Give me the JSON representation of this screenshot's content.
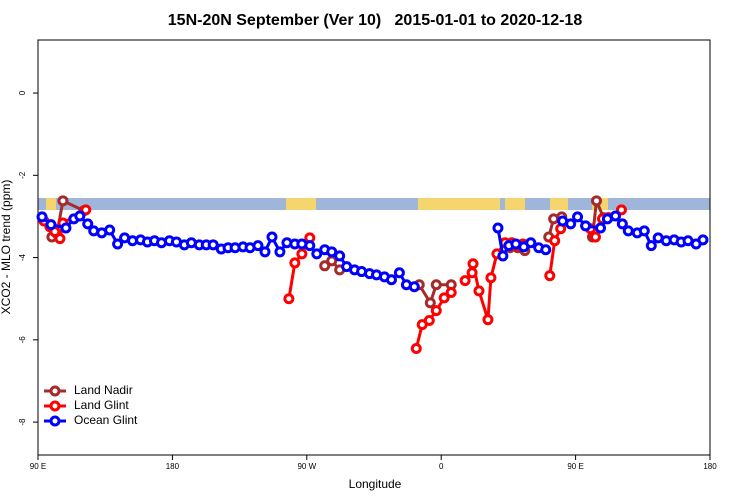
{
  "chart_data": {
    "type": "line",
    "title": "15N-20N September (Ver 10)   2015-01-01 to 2020-12-18",
    "xlabel": "Longitude",
    "ylabel": "XCO2 - MLO trend (ppm)",
    "xlim": [
      90,
      540
    ],
    "ylim": [
      -8.8,
      1.29
    ],
    "xticks": [
      {
        "value": 90,
        "label": "90 E"
      },
      {
        "value": 180,
        "label": "180"
      },
      {
        "value": 270,
        "label": "90 W"
      },
      {
        "value": 360,
        "label": "0"
      },
      {
        "value": 450,
        "label": "90 E"
      },
      {
        "value": 540,
        "label": "180"
      }
    ],
    "yticks": [
      0,
      -2,
      -4,
      -6,
      -8
    ],
    "legend": "bottomleft",
    "series": [
      {
        "name": "Land Nadir",
        "color": "#a52a2a",
        "x": [
          99.3,
          102.7,
          106.7,
          120.7,
          null,
          282,
          286.7,
          292,
          null,
          345.3,
          352.7,
          356.7,
          366.7,
          null,
          406,
          411.3,
          416,
          null,
          432,
          435.3,
          440.7,
          null,
          461.3,
          464,
          468.7
        ],
        "values": [
          -3.5,
          -3.42,
          -2.62,
          -2.86,
          null,
          -4.2,
          -4.08,
          -4.3,
          null,
          -4.66,
          -5.1,
          -4.66,
          -4.66,
          null,
          -3.76,
          -3.76,
          -3.83,
          null,
          -3.5,
          -3.06,
          -3.01,
          null,
          -3.5,
          -2.62,
          -3.03
        ]
      },
      {
        "name": "Land Glint",
        "color": "#ff0000",
        "x": [
          94,
          98,
          101.3,
          104.7,
          106.7,
          122,
          null,
          258,
          262,
          266.7,
          272,
          null,
          343.3,
          347.3,
          352,
          356.7,
          362,
          366.7,
          null,
          376,
          380.7,
          381.3,
          385.3,
          391.3,
          393.3,
          397.3,
          402.7,
          407.3,
          410.7,
          414.7,
          null,
          432.7,
          436,
          440,
          null,
          460,
          463.3,
          468,
          472,
          480.7
        ],
        "values": [
          -3.11,
          -3.25,
          -3.37,
          -3.54,
          -3.16,
          -2.84,
          null,
          -5.0,
          -4.13,
          -3.91,
          -3.52,
          null,
          -6.21,
          -5.63,
          -5.53,
          -5.29,
          -4.98,
          -4.85,
          null,
          -4.56,
          -4.37,
          -4.15,
          -4.81,
          -5.51,
          -4.49,
          -3.91,
          -3.64,
          -3.64,
          -3.71,
          -3.67,
          null,
          -4.44,
          -3.59,
          -3.3,
          null,
          -3.3,
          -3.5,
          -3.06,
          -3.03,
          -2.84
        ]
      },
      {
        "name": "Ocean Glint",
        "color": "#0000ff",
        "x": [
          92.7,
          98.7,
          108.7,
          114,
          118,
          123.3,
          127.3,
          132.7,
          138,
          143.3,
          148,
          153.3,
          158.7,
          163.3,
          168,
          172.7,
          178,
          182.7,
          188,
          192.7,
          198,
          202.7,
          207.3,
          212.7,
          217.3,
          222,
          227.3,
          232,
          237.3,
          242,
          246.7,
          252,
          256.7,
          262,
          266.7,
          272,
          276.7,
          282,
          286.7,
          292,
          296.7,
          302,
          306.7,
          312,
          316.7,
          322,
          326.7,
          332,
          336.7,
          342,
          null,
          398,
          401.3,
          405.3,
          410,
          415.3,
          420,
          425.3,
          430,
          null,
          441.3,
          446.7,
          451.3,
          456.7,
          466.7,
          471.3,
          476.7,
          481.3,
          485.3,
          491.3,
          496,
          500.7,
          505.3,
          510.7,
          516,
          520.7,
          525.3,
          530.7,
          535.3
        ],
        "values": [
          -3.01,
          -3.2,
          -3.28,
          -3.06,
          -2.99,
          -3.18,
          -3.35,
          -3.4,
          -3.33,
          -3.67,
          -3.52,
          -3.59,
          -3.57,
          -3.62,
          -3.59,
          -3.64,
          -3.59,
          -3.62,
          -3.69,
          -3.64,
          -3.69,
          -3.69,
          -3.69,
          -3.79,
          -3.76,
          -3.76,
          -3.74,
          -3.76,
          -3.71,
          -3.86,
          -3.5,
          -3.86,
          -3.64,
          -3.67,
          -3.67,
          -3.71,
          -3.91,
          -3.81,
          -3.86,
          -3.96,
          -4.22,
          -4.3,
          -4.34,
          -4.39,
          -4.42,
          -4.47,
          -4.54,
          -4.37,
          -4.66,
          -4.71,
          null,
          -3.28,
          -3.96,
          -3.71,
          -3.67,
          -3.74,
          -3.64,
          -3.76,
          -3.81,
          null,
          -3.11,
          -3.18,
          -3.01,
          -3.23,
          -3.28,
          -3.06,
          -2.99,
          -3.18,
          -3.35,
          -3.4,
          -3.35,
          -3.71,
          -3.52,
          -3.59,
          -3.57,
          -3.62,
          -3.59,
          -3.67,
          -3.57
        ]
      }
    ]
  }
}
